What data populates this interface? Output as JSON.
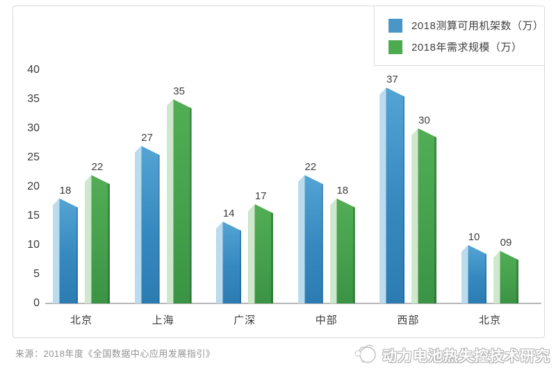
{
  "legend": {
    "items": [
      {
        "label": "2018测算可用机架数（万）",
        "color": "#4a96c6"
      },
      {
        "label": "2018年需求规模（万）",
        "color": "#4caa50"
      }
    ]
  },
  "chart_data": {
    "type": "bar",
    "categories": [
      "北京",
      "上海",
      "广深",
      "中部",
      "西部",
      "北京"
    ],
    "series": [
      {
        "name": "2018测算可用机架数（万）",
        "color": "#3d8ec3",
        "values": [
          18,
          27,
          14,
          22,
          37,
          10
        ],
        "labels": [
          "18",
          "27",
          "14",
          "22",
          "37",
          "10"
        ]
      },
      {
        "name": "2018年需求规模（万）",
        "color": "#4aa74e",
        "values": [
          22,
          35,
          17,
          18,
          30,
          9
        ],
        "labels": [
          "22",
          "35",
          "17",
          "18",
          "30",
          "09"
        ]
      }
    ],
    "title": "",
    "xlabel": "",
    "ylabel": "",
    "ylim": [
      0,
      40
    ],
    "yticks": [
      0,
      5,
      10,
      15,
      20,
      25,
      30,
      35,
      40
    ],
    "grid": false,
    "legend_position": "top-right"
  },
  "footer": {
    "source": "来源：2018年度《全国数据中心应用发展指引》",
    "watermark": "动力电池热失控技术研究"
  },
  "colors": {
    "frame_border": "#d9d9d9",
    "baseline": "#b6b6b6",
    "axis_text": "#3a3a3a",
    "value_text": "#3c3c3c",
    "source_text": "#929292",
    "bar_blue_main": "#3d8ec3",
    "bar_blue_light": "#bcdcee",
    "bar_green_main": "#4aa74e",
    "bar_green_light": "#cfe7cd"
  }
}
